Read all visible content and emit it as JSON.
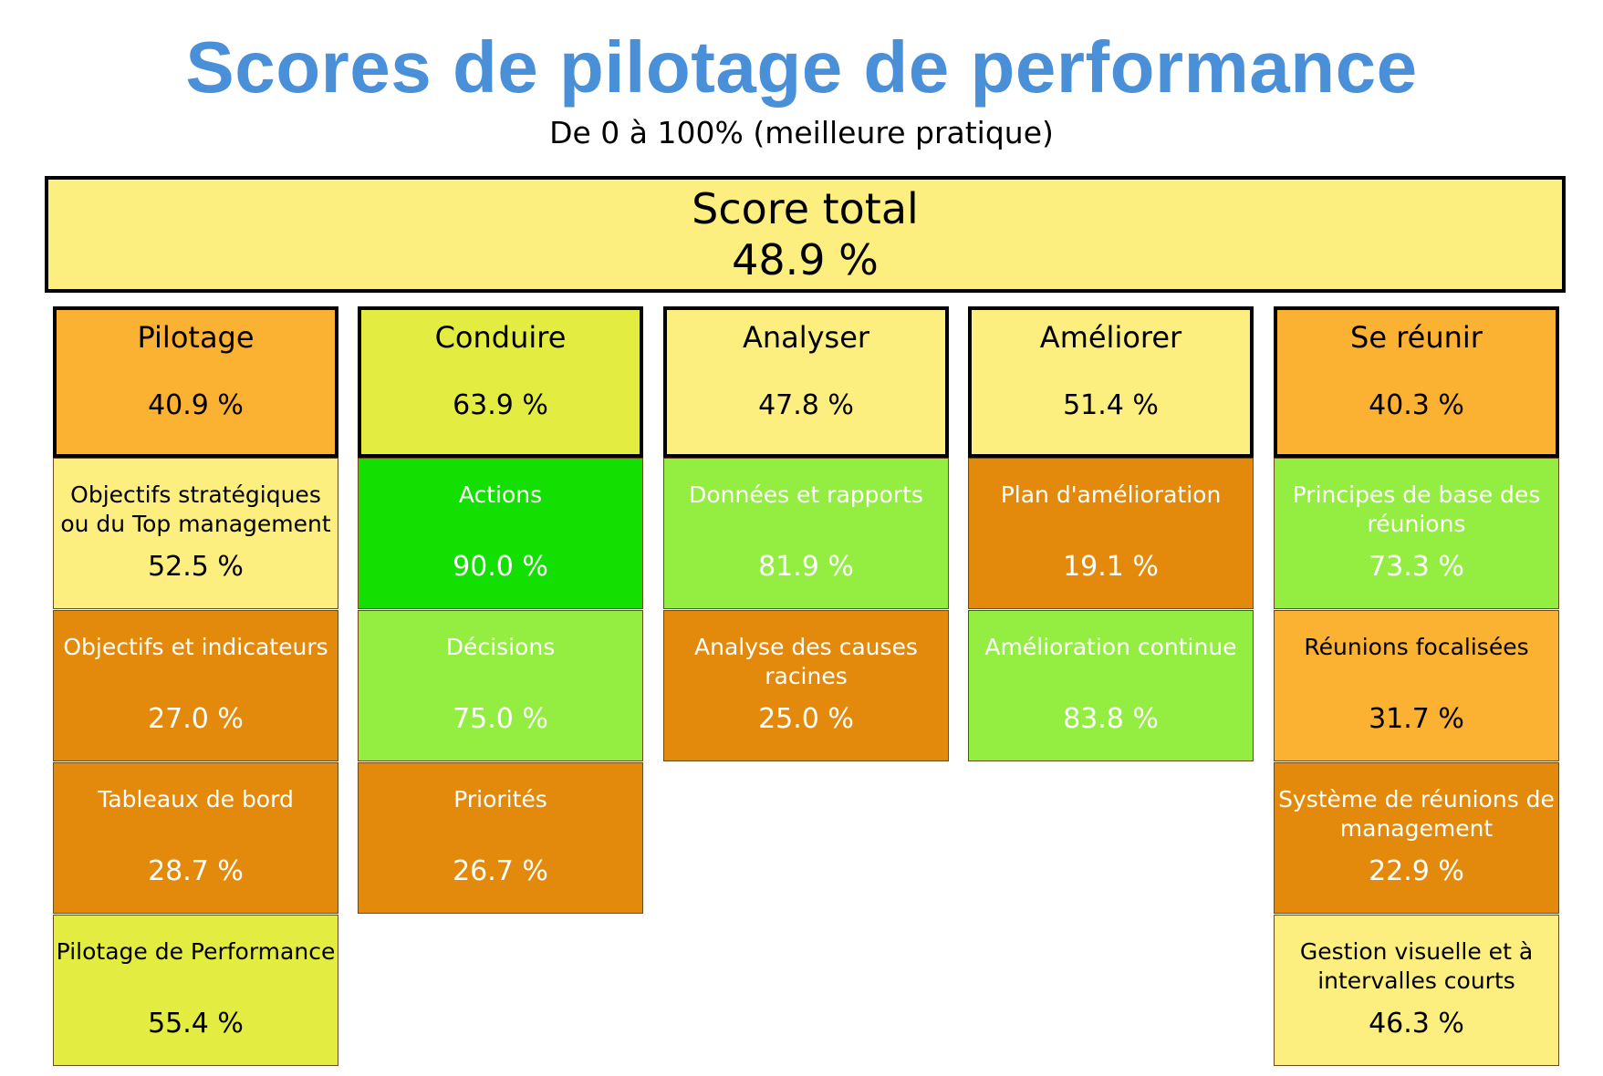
{
  "title": "Scores de pilotage de performance",
  "subtitle": "De 0 à 100% (meilleure pratique)",
  "total": {
    "label": "Score total",
    "value": "48.9 %"
  },
  "columns": [
    {
      "label": "Pilotage",
      "value": "40.9 %",
      "color": "#fbb131",
      "cells": [
        {
          "label": "Objectifs stratégiques ou du Top management",
          "value": "52.5 %",
          "color": "#fdef7f",
          "text": "dark"
        },
        {
          "label": "Objectifs et indicateurs",
          "value": "27.0 %",
          "color": "#e38a0c",
          "text": "light"
        },
        {
          "label": "Tableaux de bord",
          "value": "28.7 %",
          "color": "#e38a0c",
          "text": "light"
        },
        {
          "label": "Pilotage de Performance",
          "value": "55.4 %",
          "color": "#e3ec41",
          "text": "dark"
        }
      ]
    },
    {
      "label": "Conduire",
      "value": "63.9 %",
      "color": "#e3ec41",
      "cells": [
        {
          "label": "Actions",
          "value": "90.0 %",
          "color": "#13e000",
          "text": "light"
        },
        {
          "label": "Décisions",
          "value": "75.0 %",
          "color": "#94ee41",
          "text": "light"
        },
        {
          "label": "Priorités",
          "value": "26.7 %",
          "color": "#e38a0c",
          "text": "light"
        }
      ]
    },
    {
      "label": "Analyser",
      "value": "47.8 %",
      "color": "#fdef7f",
      "cells": [
        {
          "label": "Données et rapports",
          "value": "81.9 %",
          "color": "#94ee41",
          "text": "light"
        },
        {
          "label": "Analyse des causes racines",
          "value": "25.0 %",
          "color": "#e38a0c",
          "text": "light"
        }
      ]
    },
    {
      "label": "Améliorer",
      "value": "51.4 %",
      "color": "#fdef7f",
      "cells": [
        {
          "label": "Plan d'amélioration",
          "value": "19.1 %",
          "color": "#e38a0c",
          "text": "light"
        },
        {
          "label": "Amélioration continue",
          "value": "83.8 %",
          "color": "#94ee41",
          "text": "light"
        }
      ]
    },
    {
      "label": "Se réunir",
      "value": "40.3 %",
      "color": "#fbb131",
      "cells": [
        {
          "label": "Principes de base des réunions",
          "value": "73.3 %",
          "color": "#94ee41",
          "text": "light"
        },
        {
          "label": "Réunions focalisées",
          "value": "31.7 %",
          "color": "#fbb131",
          "text": "dark"
        },
        {
          "label": "Système de réunions de management",
          "value": "22.9 %",
          "color": "#e38a0c",
          "text": "light"
        },
        {
          "label": "Gestion visuelle et à intervalles courts",
          "value": "46.3 %",
          "color": "#fdef7f",
          "text": "dark"
        }
      ]
    }
  ]
}
